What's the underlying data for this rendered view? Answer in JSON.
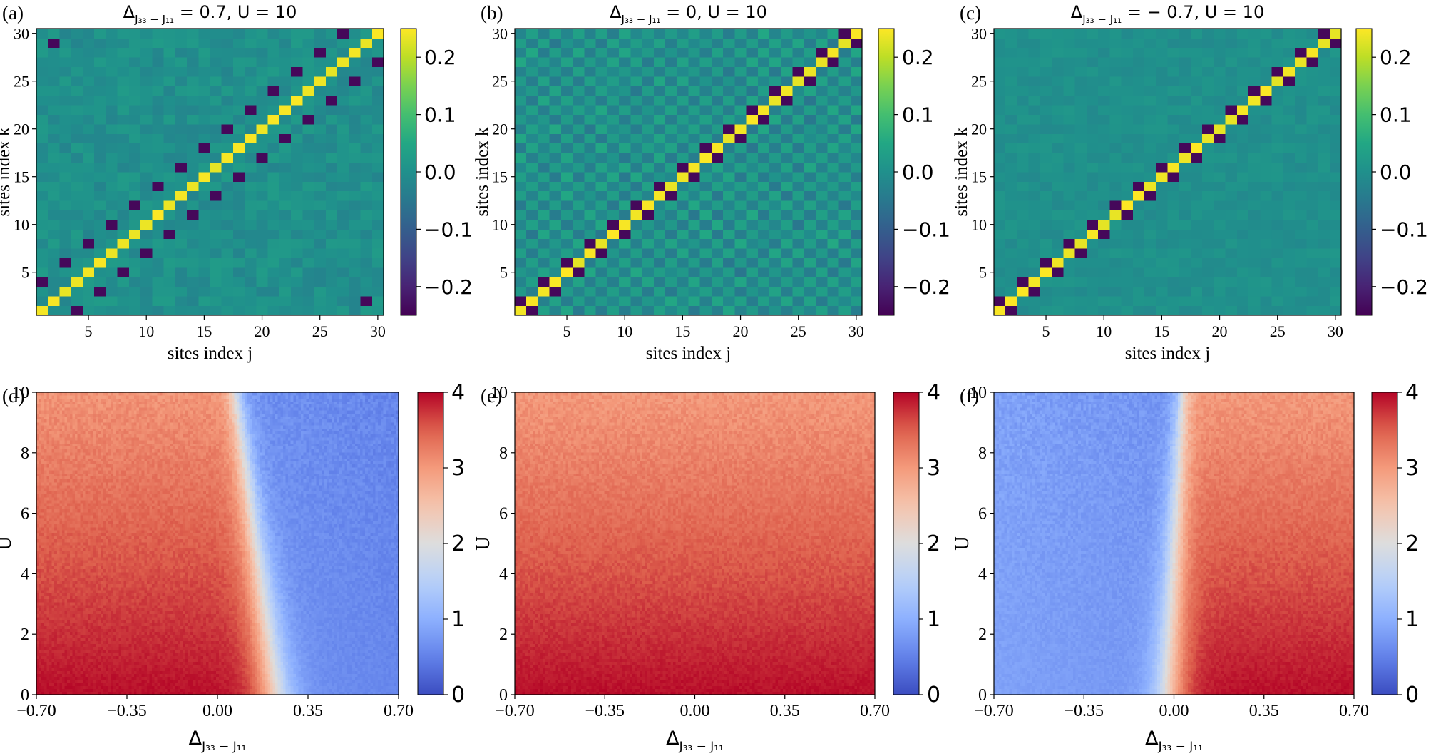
{
  "chart_data": [
    {
      "id": "a",
      "type": "heatmap",
      "panel_label": "(a)",
      "title_prefix": "Δ",
      "title_sub": "J₃₃ − J₁₁",
      "title_suffix": " = 0.7,  U = 10",
      "xlabel": "sites index j",
      "ylabel": "sites index k",
      "xlim": [
        0.5,
        30.5
      ],
      "ylim": [
        0.5,
        30.5
      ],
      "xticks": [
        5,
        10,
        15,
        20,
        25,
        30
      ],
      "xtick_labels": [
        "5",
        "10",
        "15",
        "20",
        "25",
        "30"
      ],
      "yticks": [
        5,
        10,
        15,
        20,
        25,
        30
      ],
      "ytick_labels": [
        "5",
        "10",
        "15",
        "20",
        "25",
        "30"
      ],
      "grid_size": 30,
      "pattern": "diag_offset3",
      "diag_value": 0.24,
      "offdiag_value": -0.24,
      "noise": 0.025,
      "colormap": "viridis",
      "clim": [
        -0.25,
        0.25
      ],
      "colorbar_ticks": [
        -0.2,
        -0.1,
        0.0,
        0.1,
        0.2
      ],
      "colorbar_labels": [
        "−0.2",
        "−0.1",
        "0.0",
        "0.1",
        "0.2"
      ]
    },
    {
      "id": "b",
      "type": "heatmap",
      "panel_label": "(b)",
      "title_prefix": "Δ",
      "title_sub": "J₃₃ − J₁₁",
      "title_suffix": " = 0,  U = 10",
      "xlabel": "sites index j",
      "ylabel": "sites index k",
      "xlim": [
        0.5,
        30.5
      ],
      "ylim": [
        0.5,
        30.5
      ],
      "xticks": [
        5,
        10,
        15,
        20,
        25,
        30
      ],
      "xtick_labels": [
        "5",
        "10",
        "15",
        "20",
        "25",
        "30"
      ],
      "yticks": [
        5,
        10,
        15,
        20,
        25,
        30
      ],
      "ytick_labels": [
        "5",
        "10",
        "15",
        "20",
        "25",
        "30"
      ],
      "grid_size": 30,
      "pattern": "diag_pairs_checker",
      "diag_value": 0.24,
      "offdiag_value": -0.24,
      "noise": 0.03,
      "colormap": "viridis",
      "clim": [
        -0.25,
        0.25
      ],
      "colorbar_ticks": [
        -0.2,
        -0.1,
        0.0,
        0.1,
        0.2
      ],
      "colorbar_labels": [
        "−0.2",
        "−0.1",
        "0.0",
        "0.1",
        "0.2"
      ]
    },
    {
      "id": "c",
      "type": "heatmap",
      "panel_label": "(c)",
      "title_prefix": "Δ",
      "title_sub": "J₃₃ − J₁₁",
      "title_suffix": " = − 0.7,  U = 10",
      "xlabel": "sites index j",
      "ylabel": "sites index k",
      "xlim": [
        0.5,
        30.5
      ],
      "ylim": [
        0.5,
        30.5
      ],
      "xticks": [
        5,
        10,
        15,
        20,
        25,
        30
      ],
      "xtick_labels": [
        "5",
        "10",
        "15",
        "20",
        "25",
        "30"
      ],
      "yticks": [
        5,
        10,
        15,
        20,
        25,
        30
      ],
      "ytick_labels": [
        "5",
        "10",
        "15",
        "20",
        "25",
        "30"
      ],
      "grid_size": 30,
      "pattern": "diag_pairs",
      "diag_value": 0.24,
      "offdiag_value": -0.24,
      "noise": 0.015,
      "colormap": "viridis",
      "clim": [
        -0.25,
        0.25
      ],
      "colorbar_ticks": [
        -0.2,
        -0.1,
        0.0,
        0.1,
        0.2
      ],
      "colorbar_labels": [
        "−0.2",
        "−0.1",
        "0.0",
        "0.1",
        "0.2"
      ]
    },
    {
      "id": "d",
      "type": "heatmap",
      "panel_label": "(d)",
      "xlabel_prefix": "Δ",
      "xlabel_sub": "J₃₃ − J₁₁",
      "ylabel": "U",
      "xlim": [
        -0.7,
        0.7
      ],
      "ylim": [
        0,
        10
      ],
      "xticks": [
        -0.7,
        -0.35,
        0.0,
        0.35,
        0.7
      ],
      "xtick_labels": [
        "−0.70",
        "−0.35",
        "0.00",
        "0.35",
        "0.70"
      ],
      "yticks": [
        0,
        2,
        4,
        6,
        8,
        10
      ],
      "ytick_labels": [
        "0",
        "2",
        "4",
        "6",
        "8",
        "10"
      ],
      "grid_x": 141,
      "grid_y": 101,
      "transition": "boundary_right",
      "boundary_at_U0": 0.22,
      "boundary_at_U10": 0.07,
      "width_at_U0": 0.045,
      "width_at_U10": 0.02,
      "high_value_U0": 3.95,
      "high_value_U10": 3.05,
      "low_value": 0.55,
      "colormap": "coolwarm",
      "clim": [
        0,
        4
      ],
      "colorbar_ticks": [
        0,
        1,
        2,
        3,
        4
      ],
      "colorbar_labels": [
        "0",
        "1",
        "2",
        "3",
        "4"
      ]
    },
    {
      "id": "e",
      "type": "heatmap",
      "panel_label": "(e)",
      "xlabel_prefix": "Δ",
      "xlabel_sub": "J₃₃ − J₁₁",
      "ylabel": "U",
      "xlim": [
        -0.7,
        0.7
      ],
      "ylim": [
        0,
        10
      ],
      "xticks": [
        -0.7,
        -0.35,
        0.0,
        0.35,
        0.7
      ],
      "xtick_labels": [
        "−0.70",
        "−0.35",
        "0.00",
        "0.35",
        "0.70"
      ],
      "yticks": [
        0,
        2,
        4,
        6,
        8,
        10
      ],
      "ytick_labels": [
        "0",
        "2",
        "4",
        "6",
        "8",
        "10"
      ],
      "grid_x": 141,
      "grid_y": 101,
      "transition": "uniform",
      "high_value_U0": 3.95,
      "high_value_U10": 3.0,
      "low_value": 0.55,
      "colormap": "coolwarm",
      "clim": [
        0,
        4
      ],
      "colorbar_ticks": [
        0,
        1,
        2,
        3,
        4
      ],
      "colorbar_labels": [
        "0",
        "1",
        "2",
        "3",
        "4"
      ]
    },
    {
      "id": "f",
      "type": "heatmap",
      "panel_label": "(f)",
      "xlabel_prefix": "Δ",
      "xlabel_sub": "J₃₃ − J₁₁",
      "ylabel": "U",
      "xlim": [
        -0.7,
        0.7
      ],
      "ylim": [
        0,
        10
      ],
      "xticks": [
        -0.7,
        -0.35,
        0.0,
        0.35,
        0.7
      ],
      "xtick_labels": [
        "−0.70",
        "−0.35",
        "0.00",
        "0.35",
        "0.70"
      ],
      "yticks": [
        0,
        2,
        4,
        6,
        8,
        10
      ],
      "ytick_labels": [
        "0",
        "2",
        "4",
        "6",
        "8",
        "10"
      ],
      "grid_x": 141,
      "grid_y": 101,
      "transition": "boundary_left",
      "boundary_at_U0": -0.02,
      "boundary_at_U10": 0.03,
      "width_at_U0": 0.04,
      "width_at_U10": 0.018,
      "high_value_U0": 3.95,
      "high_value_U10": 3.0,
      "low_value": 0.55,
      "colormap": "coolwarm",
      "clim": [
        0,
        4
      ],
      "colorbar_ticks": [
        0,
        1,
        2,
        3,
        4
      ],
      "colorbar_labels": [
        "0",
        "1",
        "2",
        "3",
        "4"
      ]
    }
  ]
}
